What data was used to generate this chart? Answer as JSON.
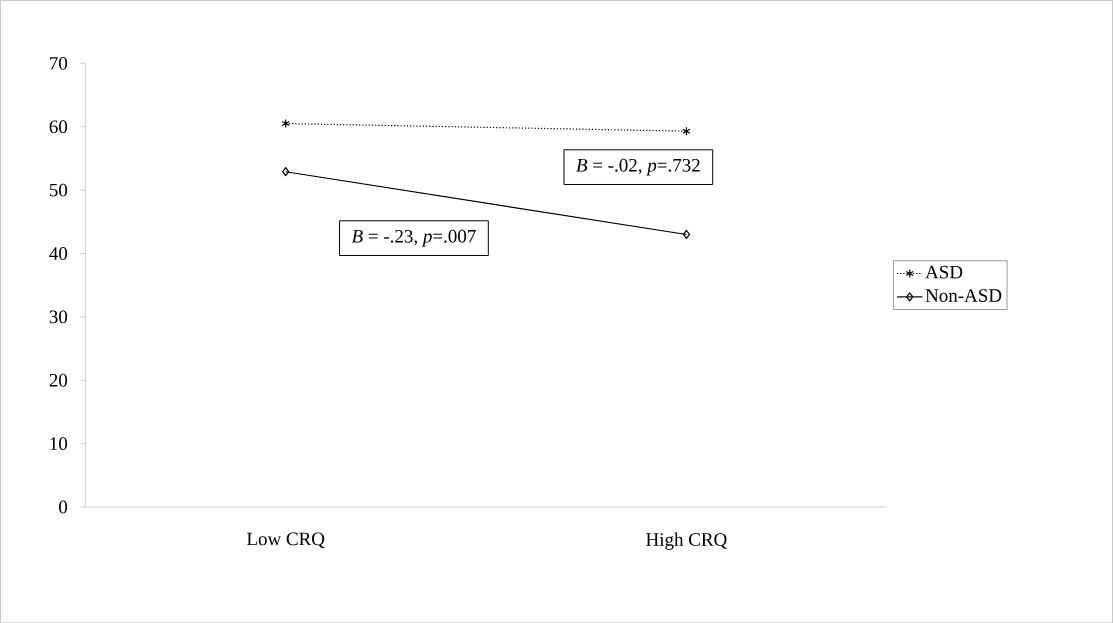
{
  "chart_data": {
    "type": "line",
    "categories": [
      "Low CRQ",
      "High CRQ"
    ],
    "series": [
      {
        "name": "ASD",
        "color": "#000000",
        "values": [
          60.5,
          59.3
        ],
        "marker": "cross",
        "line_style": "dotted"
      },
      {
        "name": "Non-ASD",
        "color": "#000000",
        "values": [
          52.9,
          43
        ],
        "marker": "diamond",
        "line_style": "solid"
      }
    ],
    "ylim": [
      0,
      70
    ],
    "yticks": [
      0,
      10,
      20,
      30,
      40,
      50,
      60,
      70
    ],
    "annotations": [
      "*B* = -.02, *p*=.732",
      "*B* = -.23, *p*=.007"
    ],
    "legend": "right",
    "grid": false
  }
}
